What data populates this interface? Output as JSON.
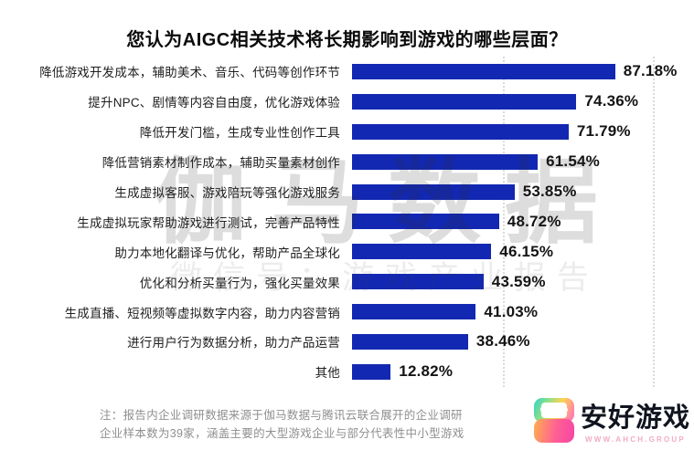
{
  "title": "您认为AIGC相关技术将长期影响到游戏的哪些层面？",
  "chart_data": {
    "type": "bar",
    "orientation": "horizontal",
    "title": "您认为AIGC相关技术将长期影响到游戏的哪些层面？",
    "xlabel": "",
    "ylabel": "",
    "xlim": [
      0,
      100
    ],
    "grid": "dotted-vertical",
    "gridline_percents": [
      50,
      100
    ],
    "bar_color": "#1228b2",
    "categories": [
      "降低游戏开发成本，辅助美术、音乐、代码等创作环节",
      "提升NPC、剧情等内容自由度，优化游戏体验",
      "降低开发门槛，生成专业性创作工具",
      "降低营销素材制作成本，辅助买量素材创作",
      "生成虚拟客服、游戏陪玩等强化游戏服务",
      "生成虚拟玩家帮助游戏进行测试，完善产品特性",
      "助力本地化翻译与优化，帮助产品全球化",
      "优化和分析买量行为，强化买量效果",
      "生成直播、短视频等虚拟数字内容，助力内容营销",
      "进行用户行为数据分析，助力产品运营",
      "其他"
    ],
    "values": [
      87.18,
      74.36,
      71.79,
      61.54,
      53.85,
      48.72,
      46.15,
      43.59,
      41.03,
      38.46,
      12.82
    ],
    "value_labels": [
      "87.18%",
      "74.36%",
      "71.79%",
      "61.54%",
      "53.85%",
      "48.72%",
      "46.15%",
      "43.59%",
      "41.03%",
      "38.46%",
      "12.82%"
    ]
  },
  "watermark": {
    "brand": "伽马数据",
    "wechat": "微信号：游戏产业报告"
  },
  "footnote": {
    "line1": "注：报告内企业调研数据来源于伽马数据与腾讯云联合展开的企业调研",
    "line2": "企业样本数为39家，涵盖主要的大型游戏企业与部分代表性中小型游戏"
  },
  "logo": {
    "name": "安好游戏",
    "url_text": "WWW.AHCH.GROUP",
    "icon": "gamepad-icon"
  }
}
